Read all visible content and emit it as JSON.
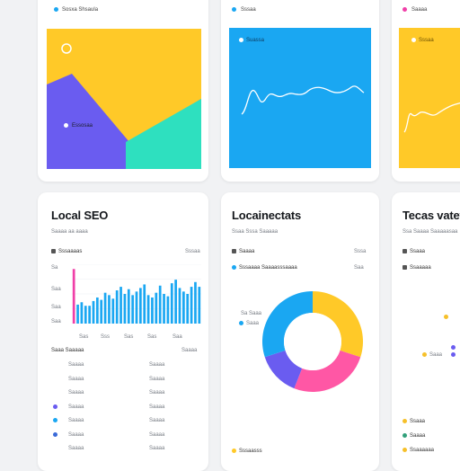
{
  "colors": {
    "yellow": "#ffc928",
    "purple": "#6a5cf0",
    "teal": "#2ee0bf",
    "blue": "#1aa7f2",
    "pink": "#ff57a5",
    "magenta": "#f03fa8",
    "gold": "#f6c02a",
    "green": "#31c27a"
  },
  "top_cards": [
    {
      "label": "Sosxa Shsaula",
      "icon": "chart-icon"
    },
    {
      "label": "Sssaa",
      "icon": "chart-icon"
    },
    {
      "label": "Saaaa",
      "icon": "chart-icon"
    }
  ],
  "tile_labels": {
    "tile1_caption": "Essosaa",
    "tile2_caption": "Suassa",
    "tile3_caption": "Sssaa"
  },
  "seo_card": {
    "title": "Local SEO",
    "subtitle": "Saaaa aa aaaa",
    "legend_label": "Sssaaaas",
    "legend_right": "Sssaa",
    "y_ticks": [
      "Sa",
      "Saa",
      "Saa",
      "Saa",
      "Sa"
    ],
    "x_ticks": [
      "Sas",
      "Sss",
      "Sas",
      "Sas",
      "Saa"
    ],
    "table_header_left": "Saaa Saaaaa",
    "table_header_right": "Saaaa",
    "rows": [
      {
        "name": "Saaaa",
        "value": "Saaaa",
        "dot": ""
      },
      {
        "name": "Saaaa",
        "value": "Saaaa",
        "dot": ""
      },
      {
        "name": "Saaaa",
        "value": "Saaaa",
        "dot": ""
      },
      {
        "name": "Saaaa",
        "value": "Saaaa",
        "dot": "#6a5cf0"
      },
      {
        "name": "Saaaa",
        "value": "Saaaa",
        "dot": "#1aa7f2"
      },
      {
        "name": "Saaaa",
        "value": "Saaaa",
        "dot": "#3a6ad8"
      },
      {
        "name": "Saaaa",
        "value": "Saaaa",
        "dot": ""
      }
    ]
  },
  "chart_data": {
    "type": "bar",
    "categories": [
      "1",
      "2",
      "3",
      "4",
      "5",
      "6",
      "7",
      "8",
      "9",
      "10",
      "11",
      "12",
      "13",
      "14",
      "15",
      "16",
      "17",
      "18",
      "19",
      "20",
      "21",
      "22",
      "23",
      "24",
      "25",
      "26",
      "27",
      "28",
      "29",
      "30",
      "31",
      "32",
      "33"
    ],
    "values": [
      92,
      32,
      36,
      30,
      30,
      38,
      44,
      40,
      52,
      48,
      42,
      56,
      62,
      50,
      58,
      48,
      54,
      60,
      66,
      48,
      44,
      52,
      64,
      50,
      46,
      68,
      74,
      60,
      54,
      50,
      62,
      70,
      62
    ],
    "highlight_index": 0,
    "ylim": [
      0,
      100
    ]
  },
  "location_card": {
    "title": "Locainectats",
    "subtitle": "Ssaa Sssa Saaaaa",
    "legend1": "Saaaa",
    "legend2": "Sssaaaa Saaaasssaaaa",
    "legend1_right": "Sssa",
    "legend2_right": "Saa",
    "pie_label": "Sa Saaa",
    "pie_label2": "Saaa",
    "bottom_labels": [
      "Sasaa",
      "Sssaasss"
    ],
    "donut": [
      {
        "name": "Saaaa",
        "value": 30,
        "color": "#ffc928"
      },
      {
        "name": "Saaaa",
        "value": 26,
        "color": "#ff57a5"
      },
      {
        "name": "Saaaa",
        "value": 14,
        "color": "#6a5cf0"
      },
      {
        "name": "Saaaa",
        "value": 30,
        "color": "#1aa7f2"
      }
    ]
  },
  "third_card": {
    "title": "Tecas vatevi",
    "subtitle": "Ssa Saaaa Saaaaasaa",
    "legend1": "Ssaaa",
    "legend2": "Ssaaaaa",
    "legend3": "Ssaaa",
    "point_label": "Saaa",
    "bottom_labels": [
      "Ssaaa",
      "Saaaa",
      "Ssaaaaaa"
    ]
  }
}
